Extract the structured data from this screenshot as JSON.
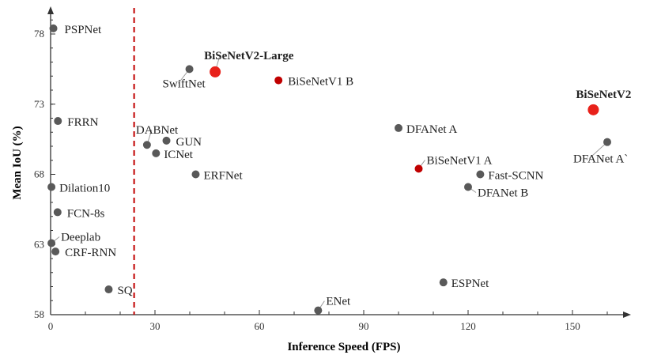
{
  "chart_data": {
    "type": "scatter",
    "title": "",
    "xlabel": "Inference Speed (FPS)",
    "ylabel": "Mean IoU (%)",
    "xlim": [
      0,
      170
    ],
    "ylim": [
      58,
      80
    ],
    "x_ticks": [
      0,
      30,
      60,
      90,
      120,
      150
    ],
    "y_ticks": [
      58,
      63,
      68,
      73,
      78
    ],
    "grid": false,
    "realtime_threshold_fps": 24,
    "colors": {
      "default": "#595959",
      "highlight": "#e8211a",
      "ours": "#c00000",
      "threshold": "#c00000",
      "axis": "#333333"
    },
    "points": [
      {
        "name": "PSPNet",
        "x": 0.8,
        "y": 78.4,
        "style": "default"
      },
      {
        "name": "FRRN",
        "x": 2.1,
        "y": 71.8,
        "style": "default"
      },
      {
        "name": "Dilation10",
        "x": 0.25,
        "y": 67.1,
        "style": "default"
      },
      {
        "name": "FCN-8s",
        "x": 2.0,
        "y": 65.3,
        "style": "default"
      },
      {
        "name": "Deeplab",
        "x": 0.25,
        "y": 63.1,
        "style": "default"
      },
      {
        "name": "CRF-RNN",
        "x": 1.4,
        "y": 62.5,
        "style": "default"
      },
      {
        "name": "SQ",
        "x": 16.7,
        "y": 59.8,
        "style": "default"
      },
      {
        "name": "DABNet",
        "x": 27.7,
        "y": 70.1,
        "style": "default"
      },
      {
        "name": "GUN",
        "x": 33.3,
        "y": 70.4,
        "style": "default"
      },
      {
        "name": "ICNet",
        "x": 30.3,
        "y": 69.5,
        "style": "default"
      },
      {
        "name": "ERFNet",
        "x": 41.7,
        "y": 68.0,
        "style": "default"
      },
      {
        "name": "SwiftNet",
        "x": 39.9,
        "y": 75.5,
        "style": "default"
      },
      {
        "name": "BiSeNetV2-Large",
        "x": 47.3,
        "y": 75.3,
        "style": "highlight"
      },
      {
        "name": "BiSeNetV1 B",
        "x": 65.5,
        "y": 74.7,
        "style": "ours"
      },
      {
        "name": "ENet",
        "x": 76.9,
        "y": 58.3,
        "style": "default"
      },
      {
        "name": "DFANet A",
        "x": 100.0,
        "y": 71.3,
        "style": "default"
      },
      {
        "name": "BiSeNetV1 A",
        "x": 105.8,
        "y": 68.4,
        "style": "ours"
      },
      {
        "name": "Fast-SCNN",
        "x": 123.5,
        "y": 68.0,
        "style": "default"
      },
      {
        "name": "DFANet B",
        "x": 120.0,
        "y": 67.1,
        "style": "default"
      },
      {
        "name": "ESPNet",
        "x": 112.9,
        "y": 60.3,
        "style": "default"
      },
      {
        "name": "BiSeNetV2",
        "x": 156.0,
        "y": 72.6,
        "style": "highlight"
      },
      {
        "name": "DFANet A`",
        "x": 160.0,
        "y": 70.3,
        "style": "default"
      }
    ]
  }
}
